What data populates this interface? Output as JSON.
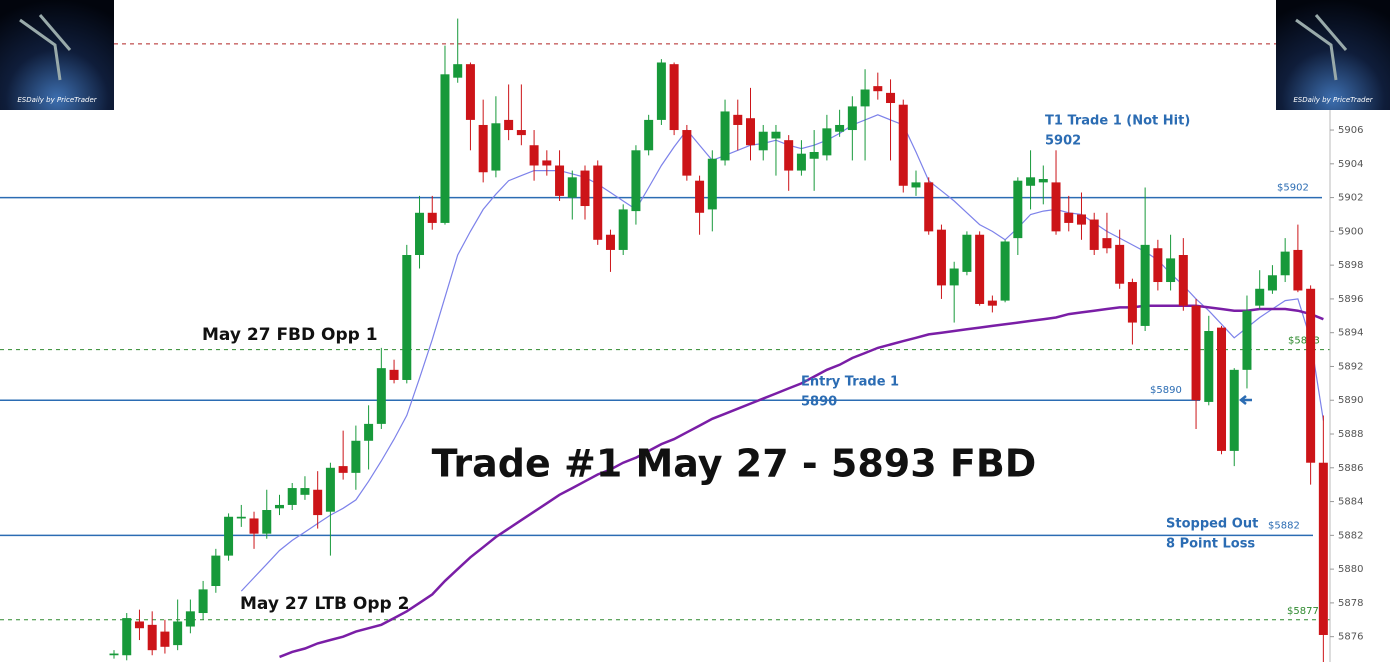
{
  "logo_text": "ESDaily by PriceTrader",
  "chart_data": {
    "type": "candlestick",
    "title": "Trade #1 May 27 - 5893 FBD",
    "ylim": [
      5874.5,
      5913.7
    ],
    "yticks": [
      5876,
      5878,
      5880,
      5882,
      5884,
      5886,
      5888,
      5890,
      5892,
      5894,
      5896,
      5898,
      5900,
      5902,
      5904,
      5906
    ],
    "up_color": "#17993a",
    "down_color": "#cc1418",
    "ohlc": [
      [
        5874.9,
        5875.2,
        5874.7,
        5875
      ],
      [
        5874.9,
        5877.4,
        5874.6,
        5877.1
      ],
      [
        5876.9,
        5877.6,
        5875.8,
        5876.5
      ],
      [
        5876.7,
        5877.5,
        5874.9,
        5875.2
      ],
      [
        5876.3,
        5877,
        5875,
        5875.4
      ],
      [
        5875.5,
        5878.2,
        5875.2,
        5876.9
      ],
      [
        5876.6,
        5878.2,
        5876.2,
        5877.5
      ],
      [
        5877.4,
        5879.3,
        5877,
        5878.8
      ],
      [
        5879,
        5881.2,
        5878.6,
        5880.8
      ],
      [
        5880.8,
        5883.3,
        5880.5,
        5883.1
      ],
      [
        5883,
        5883.8,
        5882.5,
        5883.1
      ],
      [
        5883,
        5883.4,
        5881.2,
        5882.1
      ],
      [
        5882.1,
        5884.7,
        5881.8,
        5883.5
      ],
      [
        5883.6,
        5884.4,
        5883.2,
        5883.8
      ],
      [
        5883.8,
        5885.1,
        5883.5,
        5884.8
      ],
      [
        5884.4,
        5885.5,
        5884.1,
        5884.8
      ],
      [
        5884.7,
        5885.8,
        5882.4,
        5883.2
      ],
      [
        5883.4,
        5886.3,
        5880.8,
        5886
      ],
      [
        5886.1,
        5888.2,
        5885.3,
        5885.7
      ],
      [
        5885.7,
        5888.5,
        5884.7,
        5887.6
      ],
      [
        5887.6,
        5889.7,
        5885.9,
        5888.6
      ],
      [
        5888.6,
        5893.1,
        5888.3,
        5891.9
      ],
      [
        5891.8,
        5892.4,
        5891,
        5891.2
      ],
      [
        5891.2,
        5899.2,
        5891,
        5898.6
      ],
      [
        5898.6,
        5902.1,
        5897.8,
        5901.1
      ],
      [
        5901.1,
        5902.1,
        5900.1,
        5900.5
      ],
      [
        5900.5,
        5911,
        5900.4,
        5909.3
      ],
      [
        5909.1,
        5912.6,
        5908.8,
        5909.9
      ],
      [
        5909.9,
        5910,
        5904.8,
        5906.6
      ],
      [
        5906.3,
        5907.8,
        5902.9,
        5903.5
      ],
      [
        5903.6,
        5908,
        5903.2,
        5906.4
      ],
      [
        5906.6,
        5908.7,
        5905.4,
        5906
      ],
      [
        5906,
        5908.7,
        5905.1,
        5905.7
      ],
      [
        5905.1,
        5906,
        5903,
        5903.9
      ],
      [
        5904.2,
        5904.8,
        5903.3,
        5903.9
      ],
      [
        5903.9,
        5904.8,
        5901.8,
        5902.1
      ],
      [
        5902,
        5903.6,
        5900.7,
        5903.2
      ],
      [
        5903.6,
        5903.9,
        5900.7,
        5901.5
      ],
      [
        5903.9,
        5904.2,
        5899.2,
        5899.5
      ],
      [
        5899.8,
        5900.1,
        5897.6,
        5898.9
      ],
      [
        5898.9,
        5901.6,
        5898.6,
        5901.3
      ],
      [
        5901.2,
        5905.1,
        5900.4,
        5904.8
      ],
      [
        5904.8,
        5906.9,
        5904.5,
        5906.6
      ],
      [
        5906.6,
        5910.2,
        5906.3,
        5910
      ],
      [
        5909.9,
        5910,
        5905.7,
        5906
      ],
      [
        5906,
        5906.3,
        5903,
        5903.3
      ],
      [
        5903,
        5903.3,
        5899.8,
        5901.1
      ],
      [
        5901.3,
        5904.8,
        5900,
        5904.3
      ],
      [
        5904.2,
        5907.8,
        5903.9,
        5907.1
      ],
      [
        5906.9,
        5907.8,
        5904.8,
        5906.3
      ],
      [
        5906.7,
        5908.5,
        5904.2,
        5905.1
      ],
      [
        5904.8,
        5906.3,
        5904.2,
        5905.9
      ],
      [
        5905.5,
        5906.3,
        5903.3,
        5905.9
      ],
      [
        5905.4,
        5905.7,
        5902.4,
        5903.6
      ],
      [
        5903.6,
        5905.4,
        5903.3,
        5904.6
      ],
      [
        5904.3,
        5906,
        5902.4,
        5904.7
      ],
      [
        5904.5,
        5906.9,
        5904.2,
        5906.1
      ],
      [
        5905.9,
        5907.2,
        5905.6,
        5906.3
      ],
      [
        5906,
        5908,
        5904.2,
        5907.4
      ],
      [
        5907.4,
        5909.6,
        5904.2,
        5908.4
      ],
      [
        5908.6,
        5909.4,
        5907.8,
        5908.3
      ],
      [
        5908.2,
        5909,
        5904.2,
        5907.6
      ],
      [
        5907.5,
        5907.8,
        5902.3,
        5902.7
      ],
      [
        5902.6,
        5903.6,
        5902.1,
        5902.9
      ],
      [
        5902.9,
        5903.2,
        5899.8,
        5900
      ],
      [
        5900.1,
        5900.4,
        5896,
        5896.8
      ],
      [
        5896.8,
        5898.2,
        5894.6,
        5897.8
      ],
      [
        5897.6,
        5900,
        5897.4,
        5899.8
      ],
      [
        5899.8,
        5900,
        5895.6,
        5895.7
      ],
      [
        5895.9,
        5896.2,
        5895.2,
        5895.6
      ],
      [
        5895.9,
        5899.5,
        5895.8,
        5899.4
      ],
      [
        5899.6,
        5903.2,
        5898.6,
        5903
      ],
      [
        5902.7,
        5904.8,
        5901.3,
        5903.2
      ],
      [
        5902.9,
        5903.9,
        5901.6,
        5903.1
      ],
      [
        5902.9,
        5904.8,
        5899.8,
        5900
      ],
      [
        5901.1,
        5902.1,
        5900,
        5900.5
      ],
      [
        5901,
        5902.3,
        5899.5,
        5900.4
      ],
      [
        5900.7,
        5901.1,
        5898.6,
        5898.9
      ],
      [
        5899.6,
        5901.1,
        5898.7,
        5899
      ],
      [
        5899.2,
        5900.1,
        5896.6,
        5896.9
      ],
      [
        5897,
        5897.2,
        5893.3,
        5894.6
      ],
      [
        5894.4,
        5902.6,
        5894.1,
        5899.2
      ],
      [
        5899,
        5899.5,
        5896.5,
        5897
      ],
      [
        5897,
        5899.8,
        5896.5,
        5898.4
      ],
      [
        5898.6,
        5899.6,
        5895.3,
        5895.6
      ],
      [
        5895.6,
        5896,
        5888.3,
        5890
      ],
      [
        5889.9,
        5895,
        5889.7,
        5894.1
      ],
      [
        5894.3,
        5894.4,
        5886.8,
        5887
      ],
      [
        5887,
        5891.9,
        5886.1,
        5891.8
      ],
      [
        5891.8,
        5896.2,
        5890.7,
        5895.3
      ],
      [
        5895.6,
        5897.7,
        5895.4,
        5896.6
      ],
      [
        5896.5,
        5898,
        5896.3,
        5897.4
      ],
      [
        5897.4,
        5899.6,
        5897,
        5898.8
      ],
      [
        5898.9,
        5900.4,
        5896.4,
        5896.5
      ],
      [
        5896.6,
        5896.8,
        5885,
        5886.3
      ],
      [
        5886.3,
        5889.1,
        5874.5,
        5876.1
      ]
    ],
    "moving_averages": [
      {
        "color": "#7d82ea",
        "values": [
          null,
          null,
          null,
          null,
          null,
          null,
          null,
          null,
          null,
          null,
          5878.7,
          5879.5,
          5880.3,
          5881.1,
          5881.7,
          5882.2,
          5882.7,
          5883.2,
          5883.6,
          5884.1,
          5885.2,
          5886.4,
          5887.7,
          5889.1,
          5891.3,
          5893.6,
          5896.1,
          5898.6,
          5900,
          5901.3,
          5902.2,
          5903,
          5903.3,
          5903.6,
          5903.6,
          5903.6,
          5903.4,
          5903.2,
          5902.8,
          5902.3,
          5901.8,
          5901.3,
          5902.6,
          5903.9,
          5905,
          5906,
          5905.1,
          5904.2,
          5904.5,
          5904.8,
          5905.1,
          5905.2,
          5905.4,
          5905.1,
          5904.9,
          5905.1,
          5905.4,
          5905.8,
          5906.3,
          5906.6,
          5906.9,
          5906.6,
          5906.3,
          5904.7,
          5903,
          5902.4,
          5901.8,
          5901.1,
          5900.4,
          5900,
          5899.5,
          5900.2,
          5901,
          5901.2,
          5901.3,
          5901.1,
          5901,
          5900.5,
          5900,
          5899.6,
          5899.2,
          5898.8,
          5898.3,
          5897.5,
          5896.8,
          5896,
          5895.3,
          5894.5,
          5893.7,
          5894.3,
          5894.9,
          5895.4,
          5895.9,
          5896,
          5893.6,
          5888.8
        ]
      },
      {
        "color": "#7a1ea6",
        "values": [
          null,
          null,
          null,
          null,
          null,
          null,
          null,
          null,
          null,
          null,
          null,
          null,
          null,
          5874.8,
          5875.1,
          5875.3,
          5875.6,
          5875.8,
          5876,
          5876.3,
          5876.5,
          5876.7,
          5877.1,
          5877.5,
          5878,
          5878.5,
          5879.3,
          5880,
          5880.7,
          5881.3,
          5881.9,
          5882.4,
          5882.9,
          5883.4,
          5883.9,
          5884.4,
          5884.8,
          5885.2,
          5885.6,
          5885.9,
          5886.3,
          5886.6,
          5887,
          5887.4,
          5887.7,
          5888.1,
          5888.5,
          5888.9,
          5889.2,
          5889.5,
          5889.8,
          5890.1,
          5890.4,
          5890.7,
          5891,
          5891.4,
          5891.8,
          5892.1,
          5892.5,
          5892.8,
          5893.1,
          5893.3,
          5893.5,
          5893.7,
          5893.9,
          5894,
          5894.1,
          5894.2,
          5894.3,
          5894.4,
          5894.5,
          5894.6,
          5894.7,
          5894.8,
          5894.9,
          5895.1,
          5895.2,
          5895.3,
          5895.4,
          5895.5,
          5895.5,
          5895.6,
          5895.6,
          5895.6,
          5895.6,
          5895.6,
          5895.5,
          5895.4,
          5895.3,
          5895.3,
          5895.4,
          5895.4,
          5895.4,
          5895.3,
          5895.1,
          5894.8
        ]
      }
    ],
    "levels": [
      {
        "value": 5911.1,
        "color": "#b02424",
        "style": "dashed"
      },
      {
        "value": 5902,
        "label": "$5902",
        "color": "#2b6cb3",
        "style": "solid"
      },
      {
        "value": 5893,
        "label": "$5893",
        "color": "#2f8a2f",
        "style": "dashed"
      },
      {
        "value": 5890,
        "label": "$5890",
        "color": "#2b6cb3",
        "style": "solid"
      },
      {
        "value": 5882,
        "label": "$5882",
        "color": "#2b6cb3",
        "style": "solid"
      },
      {
        "value": 5877,
        "label": "$5877",
        "color": "#2f8a2f",
        "style": "dashed"
      }
    ],
    "annotations": [
      "T1 Trade 1 (Not Hit)",
      "5902",
      "Entry Trade 1",
      "5890",
      "Stopped Out",
      "8 Point Loss",
      "May 27 FBD Opp 1",
      "May 27 LTB Opp 2"
    ]
  }
}
